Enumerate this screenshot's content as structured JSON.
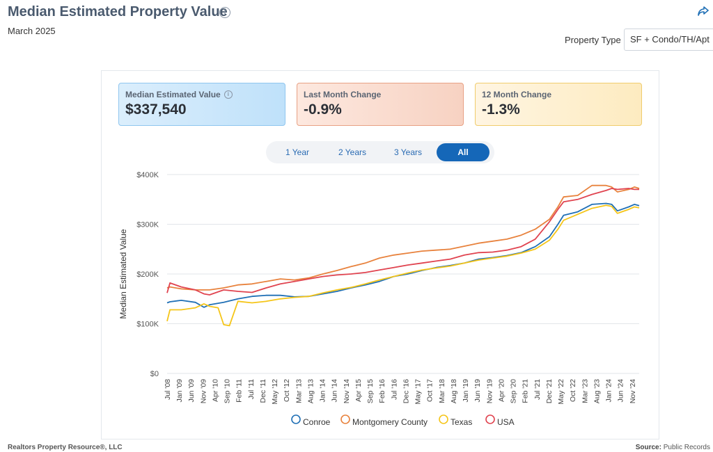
{
  "header": {
    "title": "Median Estimated Property Value",
    "info_glyph": "i",
    "subtitle": "March 2025",
    "property_type_label": "Property Type",
    "property_type_value": "SF + Condo/TH/Apt"
  },
  "cards": [
    {
      "label": "Median Estimated Value",
      "value": "$337,540"
    },
    {
      "label": "Last Month Change",
      "value": "-0.9%"
    },
    {
      "label": "12 Month Change",
      "value": "-1.3%"
    }
  ],
  "ranges": [
    "1 Year",
    "2 Years",
    "3 Years",
    "All"
  ],
  "active_range": "All",
  "footer": {
    "left": "Realtors Property Resource®, LLC",
    "source_label": "Source:",
    "source_value": "Public Records"
  },
  "colors": {
    "Conroe": "#1f6fb5",
    "Montgomery County": "#e8823d",
    "Texas": "#f5c518",
    "USA": "#e0434f"
  },
  "chart_data": {
    "type": "line",
    "title": "Median Estimated Property Value",
    "xlabel": "",
    "ylabel": "Median Estimated Value",
    "ylim": [
      0,
      400000
    ],
    "yticks": [
      0,
      100000,
      200000,
      300000,
      400000
    ],
    "ytick_labels": [
      "$0",
      "$100K",
      "$200K",
      "$300K",
      "$400K"
    ],
    "xlim": [
      2008.5,
      2025.17
    ],
    "xtick_labels": [
      "Jul '08",
      "Jan '09",
      "Jun '09",
      "Nov '09",
      "Apr '10",
      "Sep '10",
      "Feb '11",
      "Jul '11",
      "Dec '11",
      "May '12",
      "Oct '12",
      "Mar '13",
      "Aug '13",
      "Jan '14",
      "Jun '14",
      "Nov '14",
      "Apr '15",
      "Sep '15",
      "Feb '16",
      "Jul '16",
      "Dec '16",
      "May '17",
      "Oct '17",
      "Mar '18",
      "Aug '18",
      "Jan '19",
      "Jun '19",
      "Nov '19",
      "Apr '20",
      "Sep '20",
      "Feb '21",
      "Jul '21",
      "Dec '21",
      "May '22",
      "Oct '22",
      "Mar '23",
      "Aug '23",
      "Jan '24",
      "Jun '24",
      "Nov '24"
    ],
    "legend_position": "bottom",
    "series": [
      {
        "name": "Conroe",
        "x": [
          2008.5,
          2008.6,
          2009.0,
          2009.5,
          2009.8,
          2010.0,
          2010.5,
          2011.0,
          2011.5,
          2012.0,
          2012.5,
          2013.0,
          2013.5,
          2014.0,
          2014.5,
          2015.0,
          2015.5,
          2016.0,
          2016.5,
          2017.0,
          2017.5,
          2018.0,
          2018.5,
          2019.0,
          2019.5,
          2020.0,
          2020.5,
          2021.0,
          2021.5,
          2022.0,
          2022.3,
          2022.5,
          2023.0,
          2023.5,
          2024.0,
          2024.2,
          2024.4,
          2024.8,
          2025.0,
          2025.17
        ],
        "values": [
          142000,
          144000,
          147000,
          143000,
          133000,
          138000,
          143000,
          150000,
          155000,
          157000,
          157000,
          154000,
          155000,
          160000,
          165000,
          172000,
          178000,
          185000,
          195000,
          200000,
          207000,
          213000,
          217000,
          222000,
          230000,
          233000,
          237000,
          243000,
          255000,
          275000,
          300000,
          318000,
          325000,
          340000,
          342000,
          340000,
          327000,
          335000,
          340000,
          337540
        ]
      },
      {
        "name": "Montgomery County",
        "x": [
          2008.5,
          2008.6,
          2009.0,
          2009.5,
          2010.0,
          2010.5,
          2011.0,
          2011.5,
          2012.0,
          2012.5,
          2013.0,
          2013.5,
          2014.0,
          2014.5,
          2015.0,
          2015.5,
          2016.0,
          2016.5,
          2017.0,
          2017.5,
          2018.0,
          2018.5,
          2019.0,
          2019.5,
          2020.0,
          2020.5,
          2021.0,
          2021.5,
          2022.0,
          2022.3,
          2022.5,
          2023.0,
          2023.5,
          2024.0,
          2024.2,
          2024.4,
          2024.8,
          2025.0,
          2025.17
        ],
        "values": [
          172000,
          174000,
          170000,
          168000,
          168000,
          172000,
          178000,
          180000,
          185000,
          190000,
          188000,
          192000,
          200000,
          207000,
          215000,
          222000,
          232000,
          238000,
          242000,
          246000,
          248000,
          250000,
          256000,
          262000,
          266000,
          270000,
          278000,
          290000,
          310000,
          335000,
          355000,
          358000,
          378000,
          378000,
          375000,
          365000,
          370000,
          375000,
          372000
        ]
      },
      {
        "name": "Texas",
        "x": [
          2008.5,
          2008.6,
          2009.0,
          2009.5,
          2009.8,
          2010.0,
          2010.3,
          2010.5,
          2010.7,
          2011.0,
          2011.5,
          2012.0,
          2012.5,
          2013.0,
          2013.5,
          2014.0,
          2014.5,
          2015.0,
          2015.5,
          2016.0,
          2016.5,
          2017.0,
          2017.5,
          2018.0,
          2018.5,
          2019.0,
          2019.5,
          2020.0,
          2020.5,
          2021.0,
          2021.5,
          2022.0,
          2022.3,
          2022.5,
          2023.0,
          2023.5,
          2024.0,
          2024.2,
          2024.4,
          2024.8,
          2025.0,
          2025.17
        ],
        "values": [
          105000,
          128000,
          128000,
          132000,
          140000,
          135000,
          132000,
          98000,
          96000,
          145000,
          142000,
          145000,
          150000,
          153000,
          155000,
          162000,
          168000,
          173000,
          180000,
          188000,
          195000,
          202000,
          208000,
          212000,
          216000,
          222000,
          228000,
          232000,
          236000,
          242000,
          250000,
          268000,
          290000,
          308000,
          320000,
          332000,
          338000,
          336000,
          322000,
          330000,
          335000,
          333000
        ]
      },
      {
        "name": "USA",
        "x": [
          2008.5,
          2008.6,
          2009.0,
          2009.5,
          2009.8,
          2010.0,
          2010.5,
          2011.0,
          2011.5,
          2012.0,
          2012.5,
          2013.0,
          2013.5,
          2014.0,
          2014.5,
          2015.0,
          2015.5,
          2016.0,
          2016.5,
          2017.0,
          2017.5,
          2018.0,
          2018.5,
          2019.0,
          2019.5,
          2020.0,
          2020.5,
          2021.0,
          2021.5,
          2022.0,
          2022.3,
          2022.5,
          2023.0,
          2023.5,
          2024.0,
          2024.2,
          2024.4,
          2024.8,
          2025.0,
          2025.17
        ],
        "values": [
          162000,
          182000,
          174000,
          168000,
          160000,
          158000,
          168000,
          165000,
          163000,
          172000,
          180000,
          185000,
          190000,
          195000,
          198000,
          200000,
          203000,
          208000,
          213000,
          218000,
          222000,
          226000,
          230000,
          238000,
          243000,
          244000,
          248000,
          255000,
          270000,
          305000,
          330000,
          345000,
          350000,
          360000,
          368000,
          372000,
          370000,
          372000,
          370000,
          370000
        ]
      }
    ]
  }
}
